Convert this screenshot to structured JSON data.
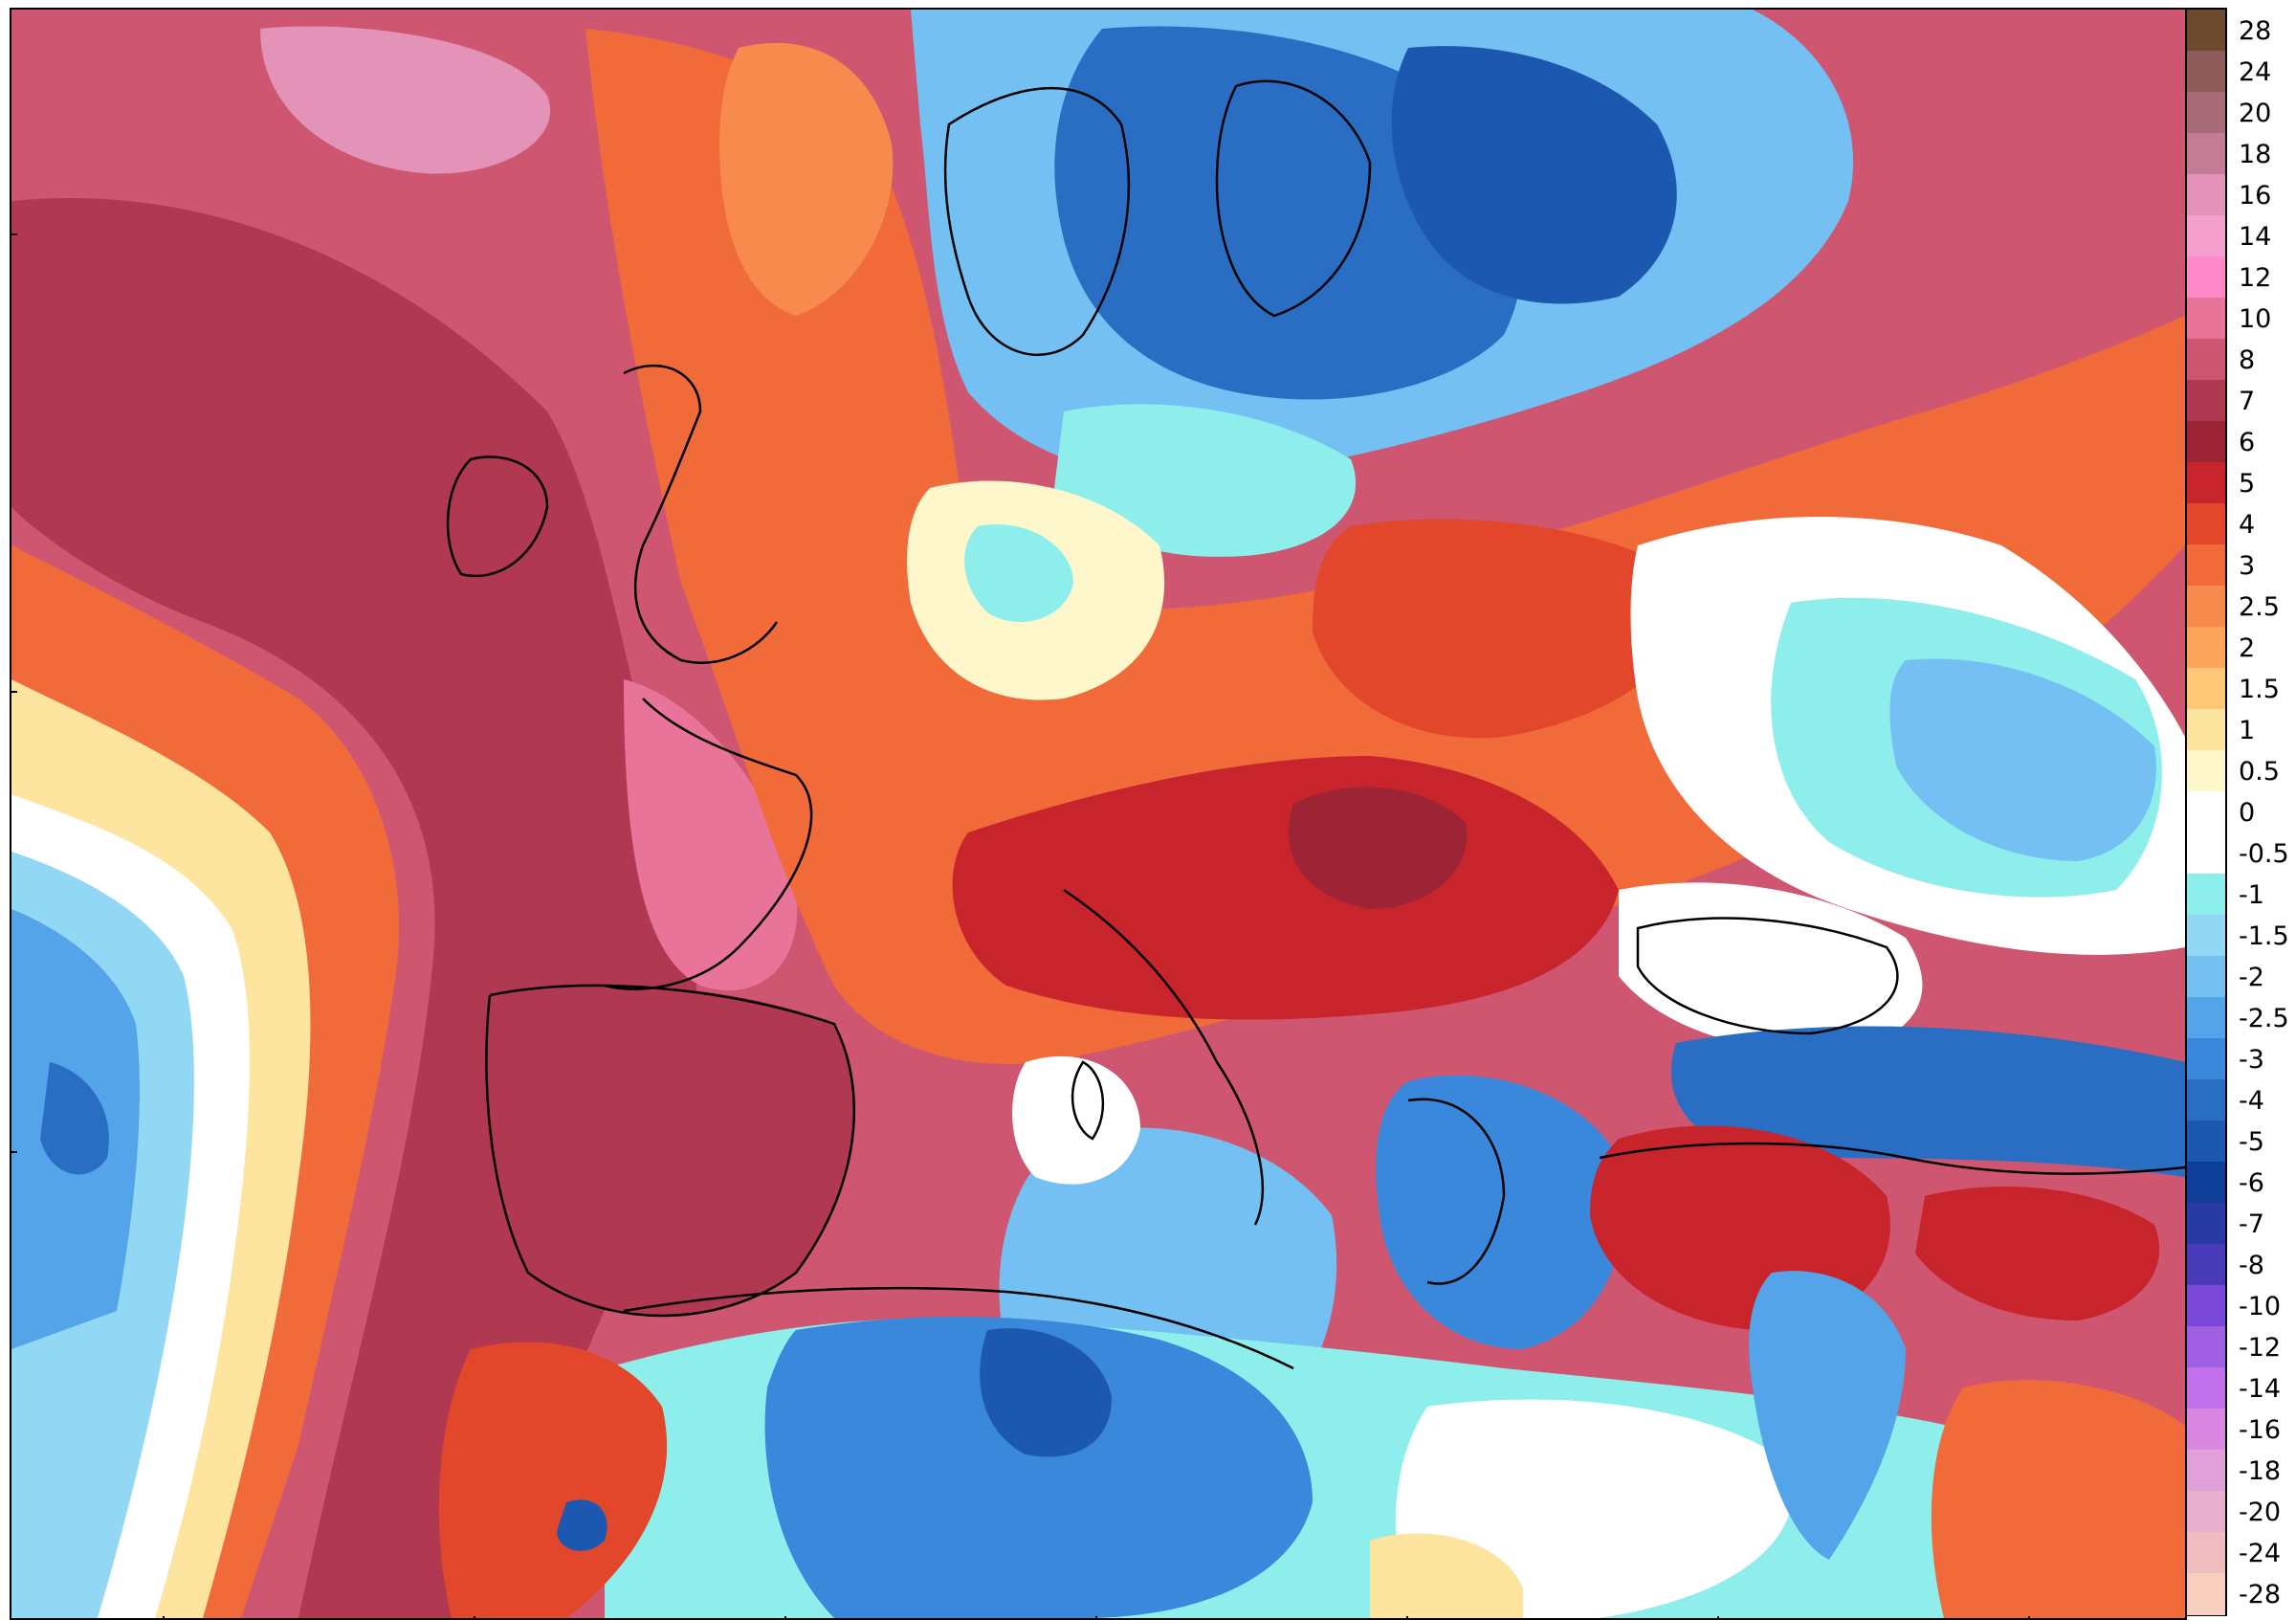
{
  "colorbar": {
    "levels": [
      {
        "label": "28",
        "color": "#6b4a2e"
      },
      {
        "label": "24",
        "color": "#8f5a5a"
      },
      {
        "label": "20",
        "color": "#a86b7a"
      },
      {
        "label": "18",
        "color": "#c47c95"
      },
      {
        "label": "16",
        "color": "#e392b8"
      },
      {
        "label": "14",
        "color": "#f5a0cc"
      },
      {
        "label": "12",
        "color": "#ff88c8"
      },
      {
        "label": "10",
        "color": "#e8749a"
      },
      {
        "label": "8",
        "color": "#cf5670"
      },
      {
        "label": "7",
        "color": "#b03850"
      },
      {
        "label": "6",
        "color": "#9c2434"
      },
      {
        "label": "5",
        "color": "#c8242c"
      },
      {
        "label": "4",
        "color": "#e2472c"
      },
      {
        "label": "3",
        "color": "#f06a3a"
      },
      {
        "label": "2.5",
        "color": "#f78a4c"
      },
      {
        "label": "2",
        "color": "#fba65a"
      },
      {
        "label": "1.5",
        "color": "#fcc878"
      },
      {
        "label": "1",
        "color": "#fde5a0"
      },
      {
        "label": "0.5",
        "color": "#fef7cc"
      },
      {
        "label": "0",
        "color": "#ffffff"
      },
      {
        "label": "-0.5",
        "color": "#ffffff"
      },
      {
        "label": "-1",
        "color": "#8eeeec"
      },
      {
        "label": "-1.5",
        "color": "#92d8f4"
      },
      {
        "label": "-2",
        "color": "#74c0f2"
      },
      {
        "label": "-2.5",
        "color": "#54a4ea"
      },
      {
        "label": "-3",
        "color": "#3a88dc"
      },
      {
        "label": "-4",
        "color": "#2a6ec4"
      },
      {
        "label": "-5",
        "color": "#1c58b0"
      },
      {
        "label": "-6",
        "color": "#0e3e98"
      },
      {
        "label": "-7",
        "color": "#2a3aa4"
      },
      {
        "label": "-8",
        "color": "#4a3cb8"
      },
      {
        "label": "-10",
        "color": "#7a48d8"
      },
      {
        "label": "-12",
        "color": "#a060e4"
      },
      {
        "label": "-14",
        "color": "#c070e8"
      },
      {
        "label": "-16",
        "color": "#d888e0"
      },
      {
        "label": "-18",
        "color": "#e0a0d8"
      },
      {
        "label": "-20",
        "color": "#e8b0cc"
      },
      {
        "label": "-24",
        "color": "#f0bcc0"
      },
      {
        "label": "-28",
        "color": "#f8d0c0"
      }
    ]
  },
  "map": {
    "palette": {
      "ocean_warm": "#cf5670",
      "deep_warm": "#9c2434",
      "pink": "#e8749a",
      "red": "#e2472c",
      "orange": "#f78a4c",
      "yellow": "#fde5a0",
      "white": "#ffffff",
      "cyan": "#8eeeec",
      "light_blue": "#74c0f2",
      "blue": "#3a88dc",
      "dark_blue": "#1c58b0",
      "border": "#000000"
    }
  }
}
